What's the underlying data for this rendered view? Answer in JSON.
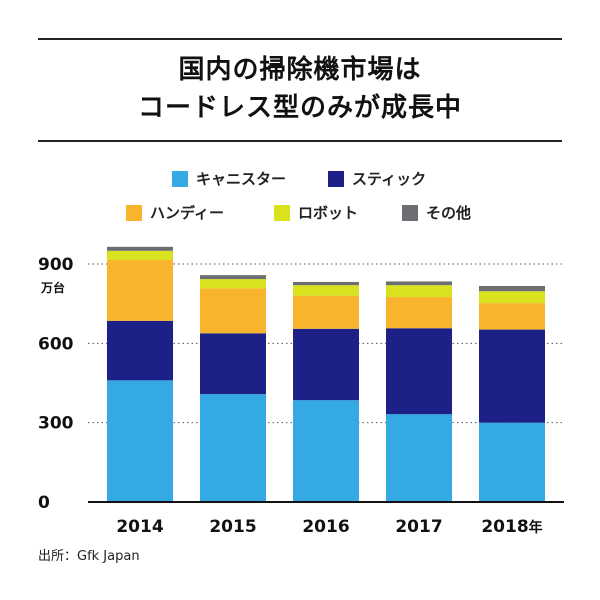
{
  "title": {
    "line1": "国内の掃除機市場は",
    "line2": "コードレス型のみが成長中"
  },
  "legend": [
    {
      "label": "キャニスター",
      "color": "#35a9e3"
    },
    {
      "label": "スティック",
      "color": "#1d2086"
    },
    {
      "label": "ハンディー",
      "color": "#f7b42c"
    },
    {
      "label": "ロボット",
      "color": "#d9e21f"
    },
    {
      "label": "その他",
      "color": "#6d6e71"
    }
  ],
  "source": "出所：Gfk Japan",
  "chart_data": {
    "type": "bar",
    "stacked": true,
    "categories": [
      "2014",
      "2015",
      "2016",
      "2017",
      "2018"
    ],
    "category_suffix_last": "年",
    "series": [
      {
        "name": "キャニスター",
        "color": "#35a9e3",
        "values": [
          460,
          408,
          385,
          332,
          300
        ]
      },
      {
        "name": "スティック",
        "color": "#1d2086",
        "values": [
          225,
          230,
          270,
          325,
          352
        ]
      },
      {
        "name": "ハンディー",
        "color": "#f7b42c",
        "values": [
          230,
          170,
          125,
          118,
          100
        ]
      },
      {
        "name": "ロボット",
        "color": "#d9e21f",
        "values": [
          35,
          35,
          40,
          45,
          45
        ]
      },
      {
        "name": "その他",
        "color": "#6d6e71",
        "values": [
          15,
          15,
          12,
          14,
          20
        ]
      }
    ],
    "yticks": [
      0,
      300,
      600,
      900
    ],
    "ylim": [
      0,
      900
    ],
    "ylabel": "万台",
    "grid": "dotted"
  }
}
